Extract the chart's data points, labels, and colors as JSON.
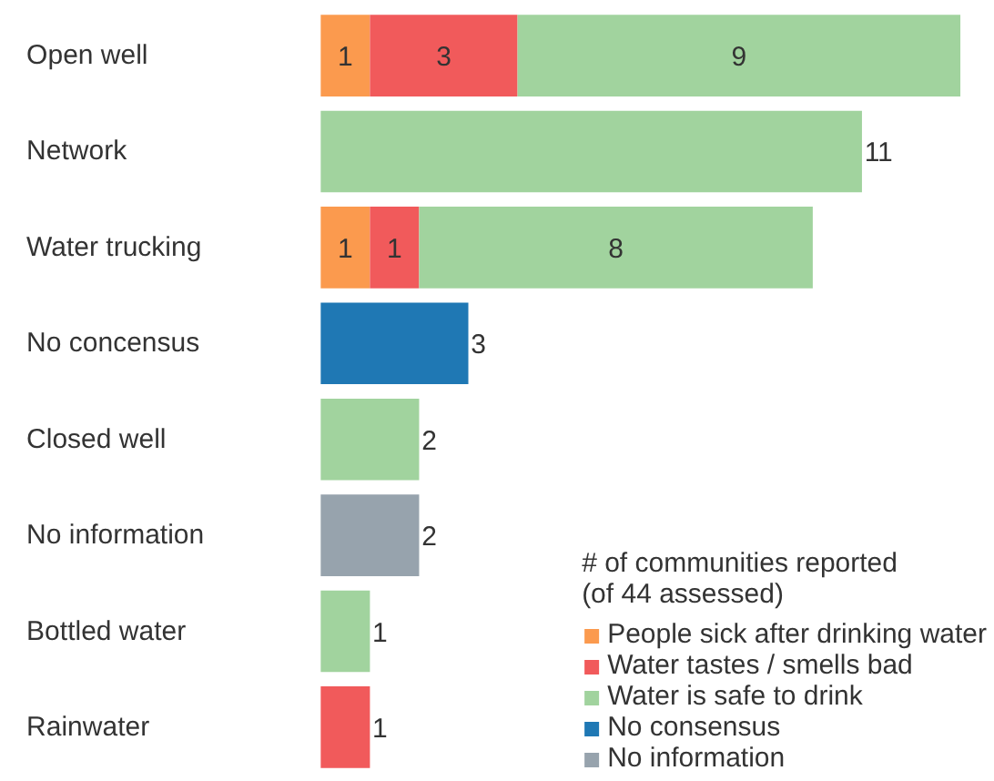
{
  "chart_data": {
    "type": "bar",
    "orientation": "horizontal",
    "stacked": true,
    "categories": [
      "Open well",
      "Network",
      "Water trucking",
      "No concensus",
      "Closed well",
      "No information",
      "Bottled water",
      "Rainwater"
    ],
    "series": [
      {
        "name": "People sick after drinking water",
        "color": "#fb9a4e",
        "values": [
          1,
          null,
          1,
          null,
          null,
          null,
          null,
          null
        ]
      },
      {
        "name": "Water tastes / smells bad",
        "color": "#f15a5b",
        "values": [
          3,
          null,
          1,
          null,
          null,
          null,
          null,
          1
        ]
      },
      {
        "name": "Water is safe to drink",
        "color": "#a1d39e",
        "values": [
          9,
          11,
          8,
          null,
          2,
          null,
          1,
          null
        ]
      },
      {
        "name": "No consensus",
        "color": "#1f78b4",
        "values": [
          null,
          null,
          null,
          3,
          null,
          null,
          null,
          null
        ]
      },
      {
        "name": "No information",
        "color": "#97a3ad",
        "values": [
          null,
          null,
          null,
          null,
          null,
          2,
          null,
          null
        ]
      }
    ],
    "legend_title": "# of communities reported\n(of 44 assessed)",
    "legend": "bottom right",
    "data_labels": true,
    "tick_labels": "y",
    "grid": false
  }
}
